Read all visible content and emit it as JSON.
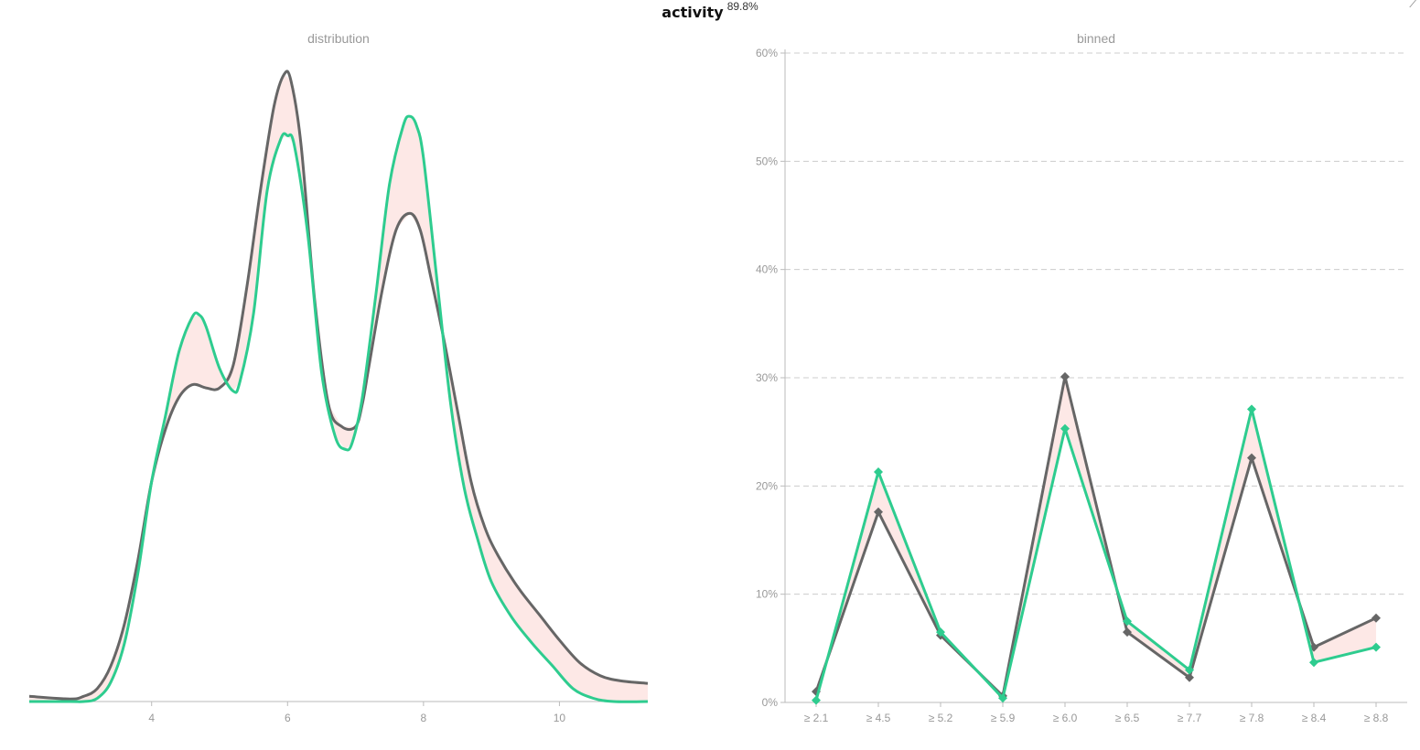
{
  "header": {
    "title": "activity",
    "score": "89.8%"
  },
  "colors": {
    "reference": "#666666",
    "current": "#2ecc8f",
    "diff_fill": "#fde8e6",
    "grid": "#cccccc",
    "axis": "#999999"
  },
  "chart_data": [
    {
      "type": "area",
      "title": "distribution",
      "xlim": [
        2.2,
        11.3
      ],
      "ylim": [
        0,
        1
      ],
      "x_ticks": [
        "4",
        "6",
        "8",
        "10"
      ],
      "x_tick_values": [
        4,
        6,
        8,
        10
      ],
      "grid": false,
      "series": [
        {
          "color": "#666666",
          "x": [
            2.2,
            2.8,
            3.0,
            3.2,
            3.4,
            3.6,
            3.8,
            4.0,
            4.2,
            4.4,
            4.6,
            4.8,
            5.0,
            5.2,
            5.4,
            5.6,
            5.8,
            5.95,
            6.05,
            6.2,
            6.4,
            6.6,
            6.8,
            7.0,
            7.1,
            7.2,
            7.4,
            7.6,
            7.8,
            7.95,
            8.1,
            8.3,
            8.5,
            8.7,
            8.9,
            9.1,
            9.4,
            9.7,
            10.0,
            10.3,
            10.6,
            10.9,
            11.3
          ],
          "y": [
            0.008,
            0.004,
            0.008,
            0.02,
            0.055,
            0.12,
            0.22,
            0.34,
            0.42,
            0.47,
            0.49,
            0.485,
            0.485,
            0.52,
            0.64,
            0.79,
            0.92,
            0.97,
            0.96,
            0.86,
            0.62,
            0.46,
            0.425,
            0.425,
            0.46,
            0.52,
            0.64,
            0.73,
            0.755,
            0.73,
            0.66,
            0.56,
            0.45,
            0.34,
            0.27,
            0.225,
            0.175,
            0.135,
            0.095,
            0.06,
            0.04,
            0.032,
            0.028
          ]
        },
        {
          "color": "#2ecc8f",
          "x": [
            2.2,
            2.8,
            3.0,
            3.2,
            3.4,
            3.6,
            3.8,
            4.0,
            4.2,
            4.4,
            4.6,
            4.7,
            4.8,
            5.0,
            5.2,
            5.3,
            5.5,
            5.7,
            5.9,
            6.0,
            6.1,
            6.3,
            6.5,
            6.7,
            6.85,
            6.95,
            7.1,
            7.3,
            7.5,
            7.7,
            7.8,
            7.9,
            8.0,
            8.2,
            8.4,
            8.6,
            8.8,
            9.0,
            9.3,
            9.6,
            9.9,
            10.2,
            10.5,
            10.8,
            11.3
          ],
          "y": [
            0.0,
            0.0,
            0.0,
            0.005,
            0.03,
            0.09,
            0.2,
            0.34,
            0.44,
            0.54,
            0.595,
            0.598,
            0.58,
            0.515,
            0.48,
            0.495,
            0.6,
            0.79,
            0.87,
            0.875,
            0.86,
            0.72,
            0.51,
            0.41,
            0.39,
            0.4,
            0.47,
            0.63,
            0.8,
            0.89,
            0.905,
            0.89,
            0.84,
            0.65,
            0.46,
            0.33,
            0.25,
            0.185,
            0.13,
            0.09,
            0.055,
            0.02,
            0.005,
            0.0,
            0.0
          ]
        }
      ]
    },
    {
      "type": "line",
      "title": "binned",
      "categories": [
        "≥ 2.1",
        "≥ 4.5",
        "≥ 5.2",
        "≥ 5.9",
        "≥ 6.0",
        "≥ 6.5",
        "≥ 7.7",
        "≥ 7.8",
        "≥ 8.4",
        "≥ 8.8"
      ],
      "ylim": [
        0,
        60
      ],
      "y_ticks": [
        "0%",
        "10%",
        "20%",
        "30%",
        "40%",
        "50%",
        "60%"
      ],
      "y_tick_values": [
        0,
        10,
        20,
        30,
        40,
        50,
        60
      ],
      "grid": true,
      "series": [
        {
          "color": "#666666",
          "values": [
            1.0,
            17.6,
            6.2,
            0.6,
            30.1,
            6.5,
            2.3,
            22.6,
            5.1,
            7.8
          ]
        },
        {
          "color": "#2ecc8f",
          "values": [
            0.2,
            21.3,
            6.5,
            0.4,
            25.3,
            7.5,
            3.0,
            27.1,
            3.7,
            5.1
          ]
        }
      ]
    }
  ]
}
